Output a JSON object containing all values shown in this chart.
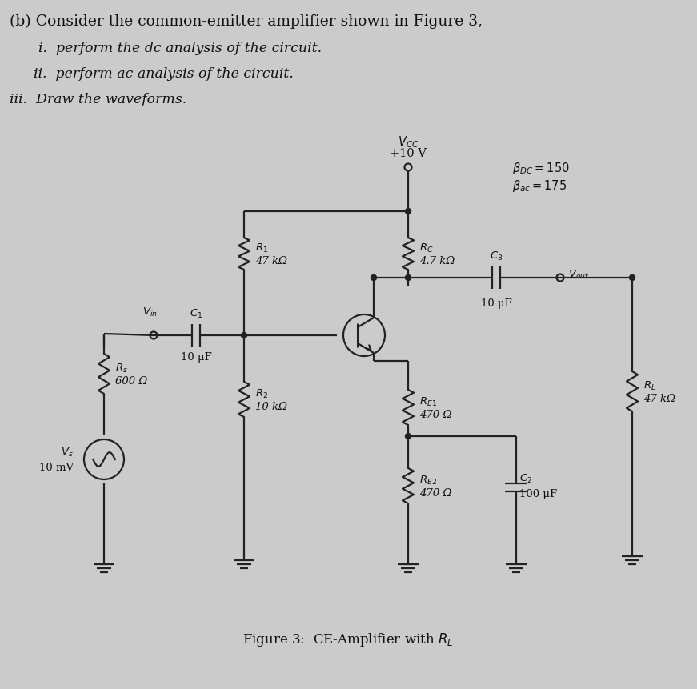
{
  "bg_color": "#d8d8d8",
  "text_color": "#111111",
  "line_color": "#222222",
  "header_line1": "(b) Consider the common-emitter amplifier shown in Figure 3,",
  "header_line2": "i.  perform the dc analysis of the circuit.",
  "header_line3": "ii.  perform ac analysis of the circuit.",
  "header_line4": "iii.  Draw the waveforms.",
  "figure_caption": "Figure 3:  CE-Amplifier with $R_L$",
  "beta_dc": "$\\beta_{DC} = 150$",
  "beta_ac": "$\\beta_{ac} = 175$"
}
